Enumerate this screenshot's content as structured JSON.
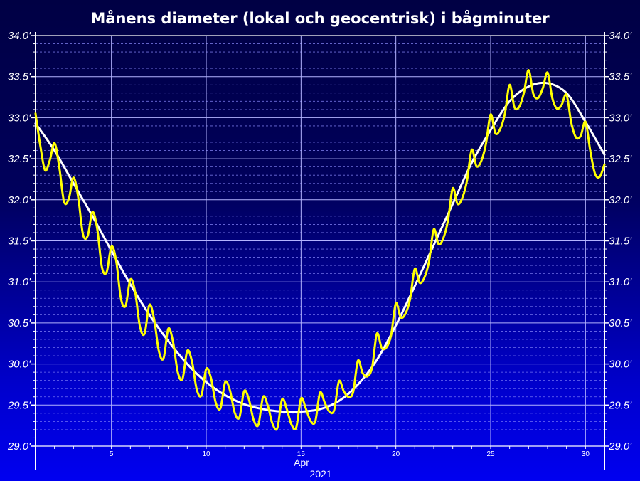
{
  "chart_data": {
    "type": "line",
    "title": "Månens diameter (lokal och geocentrisk) i bågminuter",
    "x_label_month": "Apr",
    "x_label_year": "2021",
    "xlim": [
      1,
      31
    ],
    "ylim": [
      29.0,
      34.0
    ],
    "x_ticks": [
      {
        "value": 5,
        "label": "5"
      },
      {
        "value": 10,
        "label": "10"
      },
      {
        "value": 15,
        "label": "15"
      },
      {
        "value": 20,
        "label": "20"
      },
      {
        "value": 25,
        "label": "25"
      },
      {
        "value": 30,
        "label": "30"
      }
    ],
    "y_ticks": [
      {
        "value": 29.0,
        "label": "29.0'"
      },
      {
        "value": 29.5,
        "label": "29.5'"
      },
      {
        "value": 30.0,
        "label": "30.0'"
      },
      {
        "value": 30.5,
        "label": "30.5'"
      },
      {
        "value": 31.0,
        "label": "31.0'"
      },
      {
        "value": 31.5,
        "label": "31.5'"
      },
      {
        "value": 32.0,
        "label": "32.0'"
      },
      {
        "value": 32.5,
        "label": "32.5'"
      },
      {
        "value": 33.0,
        "label": "33.0'"
      },
      {
        "value": 33.5,
        "label": "33.5'"
      },
      {
        "value": 34.0,
        "label": "34.0'"
      }
    ],
    "grid": true,
    "minor_y_step": 0.1,
    "series": [
      {
        "color": "#ffffff",
        "x": [
          1,
          2,
          3,
          4,
          5,
          6,
          7,
          8,
          9,
          10,
          11,
          12,
          13,
          14,
          15,
          16,
          17,
          18,
          19,
          20,
          21,
          22,
          23,
          24,
          25,
          26,
          27,
          28,
          29,
          30,
          31
        ],
        "values": [
          32.93,
          32.6,
          32.2,
          31.8,
          31.38,
          30.97,
          30.6,
          30.28,
          30.0,
          29.78,
          29.62,
          29.51,
          29.45,
          29.42,
          29.42,
          29.45,
          29.55,
          29.75,
          30.05,
          30.47,
          30.95,
          31.45,
          31.95,
          32.45,
          32.85,
          33.2,
          33.38,
          33.42,
          33.3,
          32.95,
          32.55
        ]
      },
      {
        "color": "#ffff00",
        "x": [
          1,
          1.25,
          1.5,
          1.75,
          2,
          2.25,
          2.5,
          2.75,
          3,
          3.25,
          3.5,
          3.75,
          4,
          4.25,
          4.5,
          4.75,
          5,
          5.25,
          5.5,
          5.75,
          6,
          6.25,
          6.5,
          6.75,
          7,
          7.25,
          7.5,
          7.75,
          8,
          8.25,
          8.5,
          8.75,
          9,
          9.25,
          9.5,
          9.75,
          10,
          10.25,
          10.5,
          10.75,
          11,
          11.25,
          11.5,
          11.75,
          12,
          12.25,
          12.5,
          12.75,
          13,
          13.25,
          13.5,
          13.75,
          14,
          14.25,
          14.5,
          14.75,
          15,
          15.25,
          15.5,
          15.75,
          16,
          16.25,
          16.5,
          16.75,
          17,
          17.25,
          17.5,
          17.75,
          18,
          18.25,
          18.5,
          18.75,
          19,
          19.25,
          19.5,
          19.75,
          20,
          20.25,
          20.5,
          20.75,
          21,
          21.25,
          21.5,
          21.75,
          22,
          22.25,
          22.5,
          22.75,
          23,
          23.25,
          23.5,
          23.75,
          24,
          24.25,
          24.5,
          24.75,
          25,
          25.25,
          25.5,
          25.75,
          26,
          26.25,
          26.5,
          26.75,
          27,
          27.25,
          27.5,
          27.75,
          28,
          28.25,
          28.5,
          28.75,
          29,
          29.25,
          29.5,
          29.75,
          30,
          30.25,
          30.5,
          30.75,
          31
        ],
        "values": [
          33.05,
          32.66,
          32.36,
          32.48,
          32.69,
          32.4,
          31.98,
          32.01,
          32.27,
          32.03,
          31.58,
          31.56,
          31.85,
          31.65,
          31.18,
          31.12,
          31.43,
          31.26,
          30.8,
          30.71,
          31.03,
          30.88,
          30.46,
          30.37,
          30.72,
          30.55,
          30.16,
          30.07,
          30.43,
          30.27,
          29.9,
          29.82,
          30.16,
          30.03,
          29.69,
          29.62,
          29.94,
          29.83,
          29.53,
          29.46,
          29.78,
          29.68,
          29.41,
          29.35,
          29.67,
          29.57,
          29.32,
          29.26,
          29.6,
          29.49,
          29.27,
          29.22,
          29.57,
          29.45,
          29.26,
          29.23,
          29.58,
          29.46,
          29.31,
          29.3,
          29.65,
          29.53,
          29.42,
          29.44,
          29.79,
          29.67,
          29.6,
          29.66,
          30.04,
          29.89,
          29.85,
          29.96,
          30.37,
          30.2,
          30.2,
          30.35,
          30.74,
          30.57,
          30.61,
          30.79,
          31.16,
          30.99,
          31.05,
          31.25,
          31.64,
          31.46,
          31.53,
          31.75,
          32.14,
          31.95,
          32.02,
          32.23,
          32.61,
          32.41,
          32.47,
          32.68,
          33.04,
          32.81,
          32.86,
          33.05,
          33.4,
          33.13,
          33.13,
          33.3,
          33.58,
          33.29,
          33.24,
          33.36,
          33.55,
          33.24,
          33.11,
          33.16,
          33.28,
          32.94,
          32.76,
          32.78,
          32.95,
          32.6,
          32.32,
          32.28,
          32.43
        ]
      }
    ]
  }
}
